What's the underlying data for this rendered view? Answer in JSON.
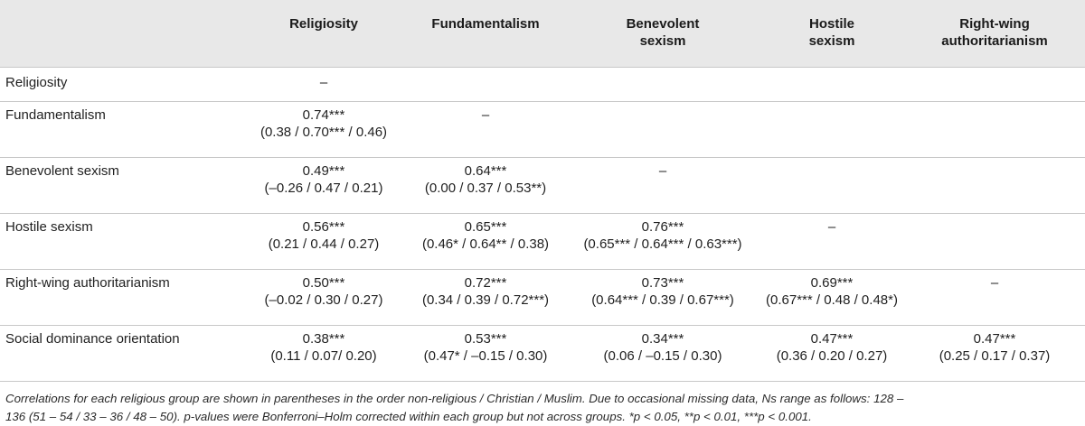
{
  "table": {
    "headers": [
      "",
      "Religiosity",
      "Fundamentalism",
      "Benevolent sexism",
      "Hostile sexism",
      "Right-wing authoritarianism"
    ],
    "header_lines": [
      [
        ""
      ],
      [
        "Religiosity"
      ],
      [
        "Fundamentalism"
      ],
      [
        "Benevolent",
        "sexism"
      ],
      [
        "Hostile",
        "sexism"
      ],
      [
        "Right-wing",
        "authoritarianism"
      ]
    ],
    "rows": [
      {
        "label": "Religiosity",
        "cells": [
          [
            "–"
          ],
          [
            ""
          ],
          [
            ""
          ],
          [
            ""
          ],
          [
            ""
          ]
        ]
      },
      {
        "label": "Fundamentalism",
        "cells": [
          [
            "0.74***",
            "(0.38 / 0.70*** / 0.46)"
          ],
          [
            "–"
          ],
          [
            ""
          ],
          [
            ""
          ],
          [
            ""
          ]
        ]
      },
      {
        "label": "Benevolent sexism",
        "cells": [
          [
            "0.49***",
            "(–0.26 / 0.47 / 0.21)"
          ],
          [
            "0.64***",
            "(0.00 / 0.37 / 0.53**)"
          ],
          [
            "–"
          ],
          [
            ""
          ],
          [
            ""
          ]
        ]
      },
      {
        "label": "Hostile sexism",
        "cells": [
          [
            "0.56***",
            "(0.21 / 0.44 / 0.27)"
          ],
          [
            "0.65***",
            "(0.46* / 0.64** / 0.38)"
          ],
          [
            "0.76***",
            "(0.65*** / 0.64*** / 0.63***)"
          ],
          [
            "–"
          ],
          [
            ""
          ]
        ]
      },
      {
        "label": "Right-wing authoritarianism",
        "cells": [
          [
            "0.50***",
            "(–0.02 / 0.30 / 0.27)"
          ],
          [
            "0.72***",
            "(0.34 / 0.39 / 0.72***)"
          ],
          [
            "0.73***",
            "(0.64*** / 0.39 / 0.67***)"
          ],
          [
            "0.69***",
            "(0.67*** / 0.48 / 0.48*)"
          ],
          [
            "–"
          ]
        ]
      },
      {
        "label": "Social dominance orientation",
        "cells": [
          [
            "0.38***",
            "(0.11 / 0.07/ 0.20)"
          ],
          [
            "0.53***",
            "(0.47* / –0.15 / 0.30)"
          ],
          [
            "0.34***",
            "(0.06 / –0.15 / 0.30)"
          ],
          [
            "0.47***",
            "(0.36 / 0.20 / 0.27)"
          ],
          [
            "0.47***",
            "(0.25 / 0.17 / 0.37)"
          ]
        ]
      }
    ]
  },
  "footnote": {
    "line1": "Correlations for each religious group are shown in parentheses in the order non-religious / Christian / Muslim. Due to occasional missing data, Ns range as follows: 128 –",
    "line2": "136 (51 – 54 / 33 – 36 / 48 – 50). p-values were Bonferroni–Holm corrected within each group but not across groups. *p < 0.05, **p < 0.01, ***p < 0.001."
  }
}
